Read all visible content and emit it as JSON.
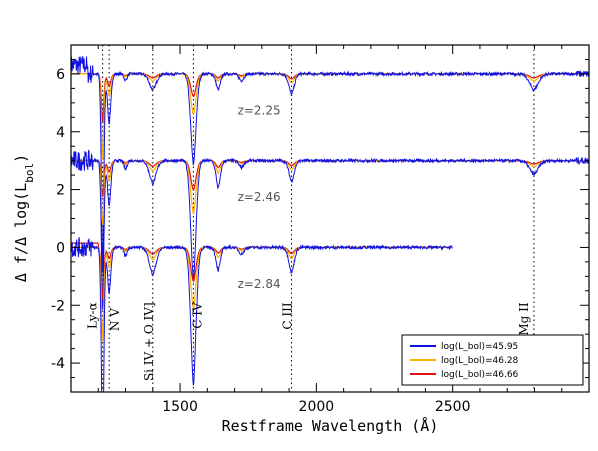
{
  "chart_data": {
    "type": "line",
    "title": "",
    "xlabel": "Restframe Wavelength (Å)",
    "ylabel": "Δ f/Δ log(L_bol)",
    "xlim": [
      1100,
      3000
    ],
    "ylim": [
      -5,
      7
    ],
    "xticks": [
      1500,
      2000,
      2500
    ],
    "yticks": [
      -4,
      -2,
      0,
      2,
      4,
      6
    ],
    "grid": false,
    "legend_position": "bottom-right",
    "series": [
      {
        "name": "log(L_bol)=45.95",
        "color": "#1010e0"
      },
      {
        "name": "log(L_bol)=46.28",
        "color": "#ffb000"
      },
      {
        "name": "log(L_bol)=46.66",
        "color": "#e01010"
      }
    ],
    "redshift_panels": [
      {
        "label": "z=2.25",
        "offset": 6,
        "xmax": 3000,
        "label_x": 1790,
        "label_y": 4.6
      },
      {
        "label": "z=2.46",
        "offset": 3,
        "xmax": 3000,
        "label_x": 1790,
        "label_y": 1.6
      },
      {
        "label": "z=2.84",
        "offset": 0,
        "xmax": 2500,
        "label_x": 1790,
        "label_y": -1.4
      }
    ],
    "emission_lines": [
      {
        "label": "Ly-α",
        "x": 1216
      },
      {
        "label": "N V",
        "x": 1240
      },
      {
        "label": "Si IV + O IV]",
        "x": 1400
      },
      {
        "label": "C IV",
        "x": 1549
      },
      {
        "label": "C III",
        "x": 1909
      },
      {
        "label": "Mg II",
        "x": 2798
      }
    ]
  }
}
